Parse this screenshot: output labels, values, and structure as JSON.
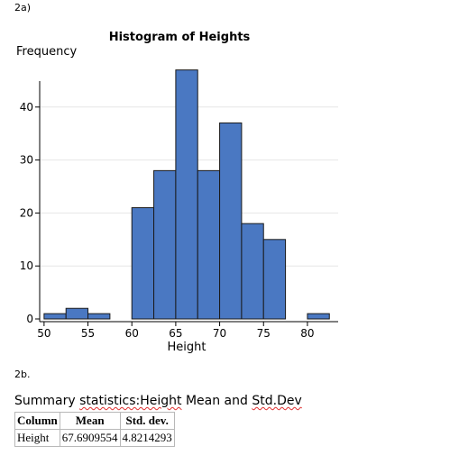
{
  "section_a_label": "2a)",
  "section_b_label": "2b.",
  "chart_data": {
    "type": "bar",
    "title": "Histogram of Heights",
    "xlabel": "Height",
    "ylabel": "Frequency",
    "bin_width": 2.5,
    "bins": [
      {
        "start": 50,
        "end": 52.5,
        "count": 1
      },
      {
        "start": 52.5,
        "end": 55,
        "count": 2
      },
      {
        "start": 55,
        "end": 57.5,
        "count": 1
      },
      {
        "start": 57.5,
        "end": 60,
        "count": 0
      },
      {
        "start": 60,
        "end": 62.5,
        "count": 21
      },
      {
        "start": 62.5,
        "end": 65,
        "count": 28
      },
      {
        "start": 65,
        "end": 67.5,
        "count": 47
      },
      {
        "start": 67.5,
        "end": 70,
        "count": 28
      },
      {
        "start": 70,
        "end": 72.5,
        "count": 37
      },
      {
        "start": 72.5,
        "end": 75,
        "count": 18
      },
      {
        "start": 75,
        "end": 77.5,
        "count": 15
      },
      {
        "start": 77.5,
        "end": 80,
        "count": 0
      },
      {
        "start": 80,
        "end": 82.5,
        "count": 1
      }
    ],
    "xlim": [
      49.5,
      83.5
    ],
    "ylim": [
      0,
      50
    ],
    "xticks": [
      50,
      55,
      60,
      65,
      70,
      75,
      80
    ],
    "yticks": [
      0,
      10,
      20,
      30,
      40
    ],
    "grid": "horizontal",
    "bar_color": "#4a78c2"
  },
  "summary": {
    "title_plain": "Summary ",
    "title_squiggle": "statistics:Height",
    "title_mid": " Mean and ",
    "title_end": "Std.Dev",
    "headers": [
      "Column",
      "Mean",
      "Std. dev."
    ],
    "rows": [
      [
        "Height",
        "67.6909554",
        "4.8214293"
      ]
    ]
  }
}
